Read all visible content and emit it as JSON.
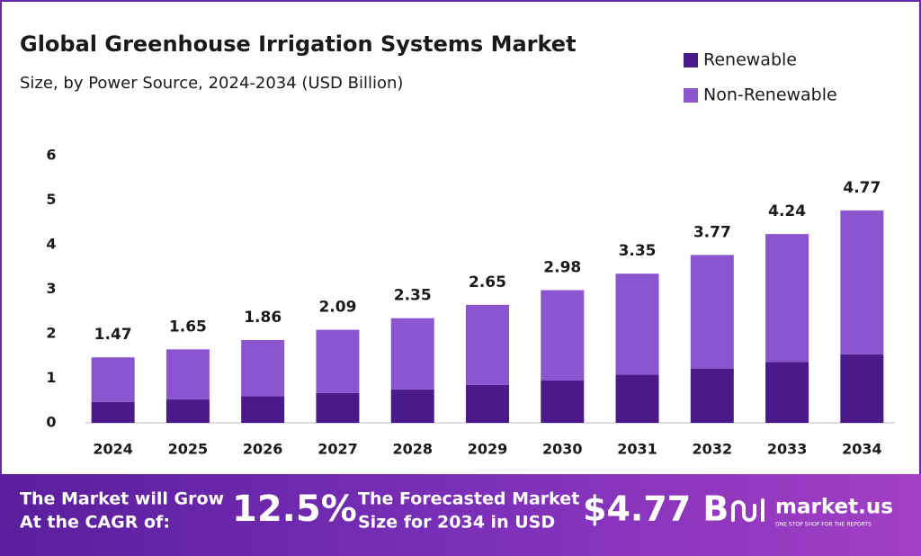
{
  "chart_data": {
    "type": "stacked-bar",
    "title": "Global Greenhouse Irrigation Systems Market",
    "subtitle": "Size, by Power Source, 2024-2034 (USD Billion)",
    "categories": [
      "2024",
      "2025",
      "2026",
      "2027",
      "2028",
      "2029",
      "2030",
      "2031",
      "2032",
      "2033",
      "2034"
    ],
    "series": [
      {
        "name": "Renewable",
        "color": "#4a1a8a",
        "values": [
          0.47,
          0.53,
          0.6,
          0.67,
          0.75,
          0.85,
          0.95,
          1.08,
          1.22,
          1.37,
          1.54
        ]
      },
      {
        "name": "Non-Renewable",
        "color": "#8b55cf",
        "values": [
          1.0,
          1.12,
          1.26,
          1.42,
          1.6,
          1.8,
          2.03,
          2.27,
          2.55,
          2.87,
          3.23
        ]
      }
    ],
    "totals": [
      1.47,
      1.65,
      1.86,
      2.09,
      2.35,
      2.65,
      2.98,
      3.35,
      3.77,
      4.24,
      4.77
    ],
    "ylim": [
      0,
      6
    ],
    "yticks": [
      0,
      1,
      2,
      3,
      4,
      5,
      6
    ],
    "grid": false,
    "legend": "top-right"
  },
  "footer": {
    "cagr_text": [
      "The Market will Grow",
      "At the CAGR of:"
    ],
    "cagr": "12.5%",
    "forecast_text": [
      "The Forecasted Market",
      "Size for 2034 in USD"
    ],
    "forecast": "$4.77 B",
    "brand": "market.us",
    "tagline": "ONE STOP SHOP FOR THE REPORTS"
  }
}
